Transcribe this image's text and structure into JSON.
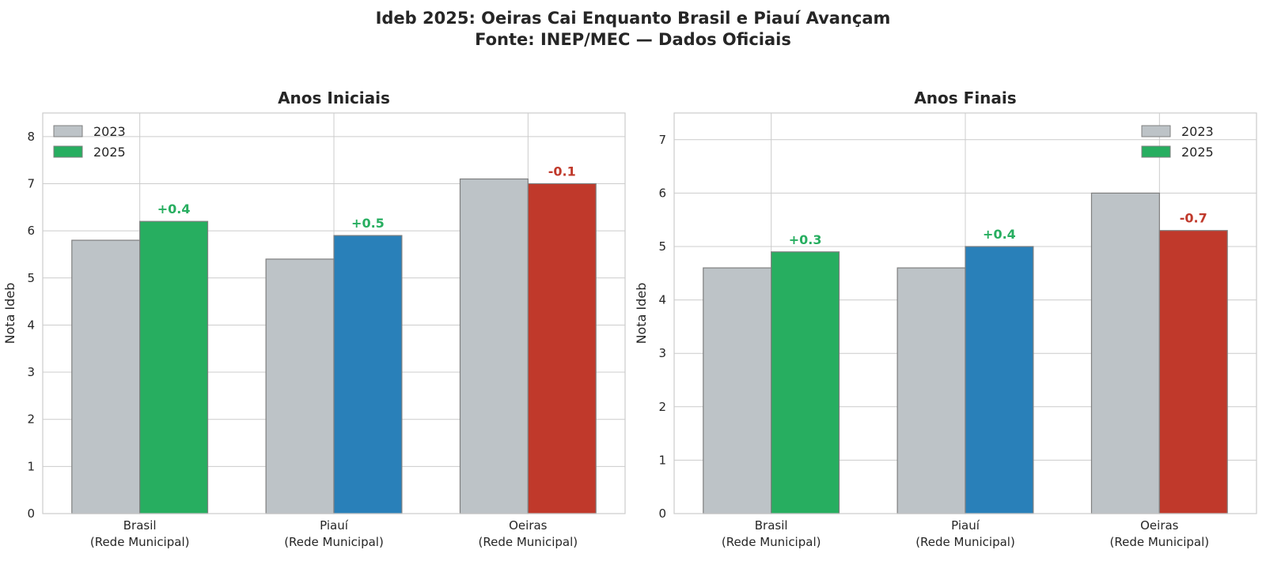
{
  "figure": {
    "title_line1": "Ideb 2025: Oeiras Cai Enquanto Brasil e Piauí Avançam",
    "title_line2": "Fonte: INEP/MEC — Dados Oficiais"
  },
  "colors": {
    "baseline": "#bdc3c7",
    "up": "#27ae60",
    "piaui": "#2980b9",
    "down": "#c0392b",
    "edge": "#7f7f7f"
  },
  "chart_data": [
    {
      "type": "bar",
      "title": "Anos Iniciais",
      "ylabel": "Nota Ideb",
      "xlabel": "",
      "ylim": [
        0,
        8.5
      ],
      "yticks": [
        0,
        1,
        2,
        3,
        4,
        5,
        6,
        7,
        8
      ],
      "grid": true,
      "legend_position": "top-left",
      "categories": [
        "Brasil\n(Rede Municipal)",
        "Piauí\n(Rede Municipal)",
        "Oeiras\n(Rede Municipal)"
      ],
      "series": [
        {
          "name": "2023",
          "values": [
            5.8,
            5.4,
            7.1
          ]
        },
        {
          "name": "2025",
          "values": [
            6.2,
            5.9,
            7.0
          ]
        }
      ],
      "bar_colors_2025": [
        "#27ae60",
        "#2980b9",
        "#c0392b"
      ],
      "annotations": [
        {
          "text": "+0.4",
          "category": 0,
          "color": "#27ae60"
        },
        {
          "text": "+0.5",
          "category": 1,
          "color": "#27ae60"
        },
        {
          "text": "-0.1",
          "category": 2,
          "color": "#c0392b"
        }
      ]
    },
    {
      "type": "bar",
      "title": "Anos Finais",
      "ylabel": "Nota Ideb",
      "xlabel": "",
      "ylim": [
        0,
        7.5
      ],
      "yticks": [
        0,
        1,
        2,
        3,
        4,
        5,
        6,
        7
      ],
      "grid": true,
      "legend_position": "top-right",
      "categories": [
        "Brasil\n(Rede Municipal)",
        "Piauí\n(Rede Municipal)",
        "Oeiras\n(Rede Municipal)"
      ],
      "series": [
        {
          "name": "2023",
          "values": [
            4.6,
            4.6,
            6.0
          ]
        },
        {
          "name": "2025",
          "values": [
            4.9,
            5.0,
            5.3
          ]
        }
      ],
      "bar_colors_2025": [
        "#27ae60",
        "#2980b9",
        "#c0392b"
      ],
      "annotations": [
        {
          "text": "+0.3",
          "category": 0,
          "color": "#27ae60"
        },
        {
          "text": "+0.4",
          "category": 1,
          "color": "#27ae60"
        },
        {
          "text": "-0.7",
          "category": 2,
          "color": "#c0392b"
        }
      ]
    }
  ]
}
